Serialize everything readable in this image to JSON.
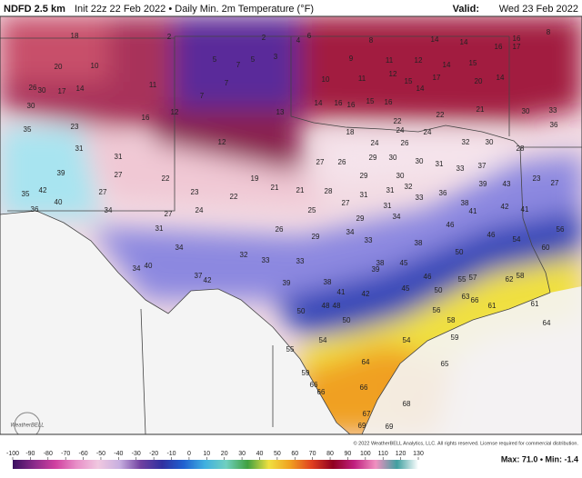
{
  "header": {
    "model": "NDFD 2.5 km",
    "description": "Init 22z 22 Feb 2022 • Daily Min. 2m Temperature (°F)",
    "valid_label": "Valid:",
    "valid_time": "Wed 23 Feb 2022"
  },
  "map": {
    "point_values": [
      18,
      2,
      2,
      4,
      6,
      8,
      14,
      14,
      16,
      8,
      20,
      10,
      5,
      7,
      3,
      5,
      7,
      9,
      11,
      12,
      14,
      15,
      16,
      17,
      26,
      30,
      17,
      14,
      11,
      7,
      10,
      11,
      12,
      15,
      14,
      17,
      20,
      14,
      30,
      16,
      12,
      13,
      14,
      16,
      16,
      15,
      16,
      22,
      22,
      21,
      30,
      33,
      35,
      23,
      18,
      24,
      24,
      32,
      30,
      28,
      36,
      12,
      24,
      26,
      29,
      30,
      30,
      31,
      31,
      26,
      27,
      29,
      30,
      31,
      33,
      37,
      39,
      27,
      22,
      19,
      21,
      21,
      28,
      31,
      32,
      36,
      39,
      43,
      23,
      27,
      35,
      42,
      27,
      23,
      22,
      31,
      33,
      38,
      42,
      41,
      40,
      36,
      34,
      27,
      24,
      25,
      27,
      31,
      41,
      26,
      29,
      34,
      46,
      46,
      54,
      56,
      60,
      31,
      29,
      34,
      33,
      38,
      50,
      34,
      32,
      33,
      33,
      38,
      45,
      34,
      40,
      37,
      42,
      39,
      46,
      55,
      57,
      62,
      58,
      39,
      38,
      41,
      42,
      45,
      50,
      63,
      66,
      61,
      61,
      50,
      48,
      48,
      50,
      56,
      58,
      64,
      54,
      55,
      54,
      59,
      64,
      65,
      59,
      66,
      66,
      66,
      68,
      67,
      69,
      69
    ],
    "logo": "WeatherBELL"
  },
  "colorbar": {
    "lim": [
      -100,
      130
    ],
    "ticks": [
      -100,
      -90,
      -80,
      -70,
      -60,
      -50,
      -40,
      -30,
      -20,
      -10,
      0,
      10,
      20,
      30,
      40,
      50,
      60,
      70,
      80,
      90,
      100,
      110,
      120,
      130
    ],
    "colors": [
      "#3a1060",
      "#8a2a8a",
      "#d040a0",
      "#e890c8",
      "#f0c8e0",
      "#c8b0e0",
      "#7040a0",
      "#3030a0",
      "#2060d0",
      "#40b0e0",
      "#70d0c0",
      "#40a040",
      "#f0e040",
      "#f0a020",
      "#e04020",
      "#900020",
      "#c02080",
      "#f090c0",
      "#40a0a0",
      "#ffffff"
    ]
  },
  "footer": {
    "copyright": "© 2022 WeatherBELL Analytics, LLC. All rights reserved. License required for commercial distribution.",
    "stats": "Max: 71.0 • Min: -1.4"
  }
}
